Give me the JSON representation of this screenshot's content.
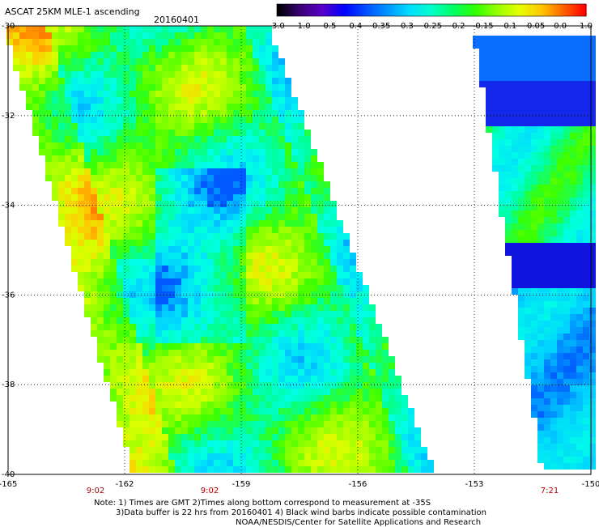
{
  "title": "ASCAT 25KM MLE-1 ascending",
  "date": "20160401",
  "colorbar": {
    "labels": [
      "-3.0",
      "-1.0",
      "-0.5",
      "-0.4",
      "-0.35",
      "-0.3",
      "-0.25",
      "-0.2",
      "-0.15",
      "-0.1",
      "-0.05",
      "0.0",
      "1.0"
    ],
    "colors": [
      "#000000",
      "#3a0078",
      "#5a00c8",
      "#0000ff",
      "#0050ff",
      "#0096ff",
      "#00dcff",
      "#00ffc8",
      "#00ff64",
      "#32ff00",
      "#96ff00",
      "#e6ff00",
      "#ffc800",
      "#ff6400",
      "#ff0000"
    ]
  },
  "map": {
    "lat_ticks": [
      "-30",
      "-32",
      "-34",
      "-36",
      "-38",
      "-40"
    ],
    "lon_ticks": [
      "-165",
      "-162",
      "-159",
      "-156",
      "-153",
      "-150"
    ],
    "times": [
      "9:02",
      "9:02",
      "7:21"
    ]
  },
  "notes": {
    "line1": "Note: 1) Times are GMT 2)Times along bottom correspond to measurement at -35S",
    "line2": "3)Data buffer is 22 hrs from 20160401 4) Black wind barbs indicate possible contamination",
    "credit": "NOAA/NESDIS/Center for Satellite Applications and Research"
  },
  "style_colors": {
    "time_label": "#b00000",
    "grid": "#000000",
    "background": "#ffffff"
  }
}
